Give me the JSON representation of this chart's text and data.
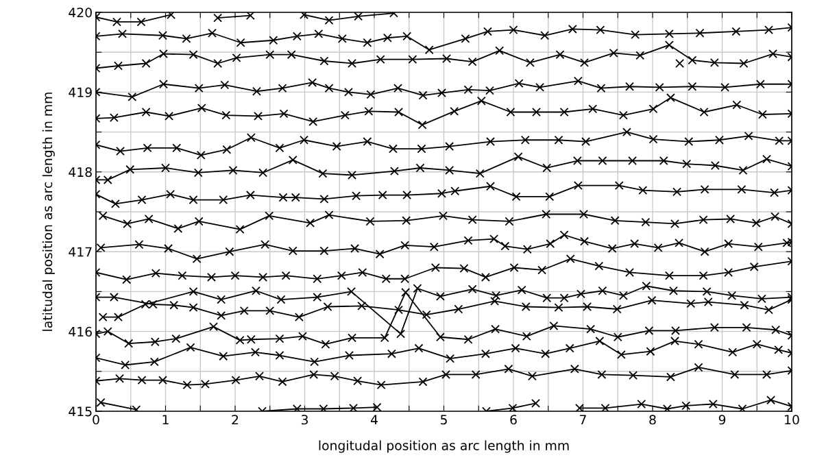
{
  "chart_data": {
    "type": "line",
    "xlabel": "longitudal position as arc length in mm",
    "ylabel": "latitudal position as arc length in mm",
    "xlim": [
      0,
      10
    ],
    "ylim": [
      415,
      420
    ],
    "xticks": [
      0,
      {
        "value": 0.5,
        "label": null
      },
      1,
      {
        "value": 1.5,
        "label": null
      },
      2,
      {
        "value": 2.5,
        "label": null
      },
      3,
      {
        "value": 3.5,
        "label": null
      },
      4,
      {
        "value": 4.5,
        "label": null
      },
      5,
      {
        "value": 5.5,
        "label": null
      },
      6,
      {
        "value": 6.5,
        "label": null
      },
      7,
      {
        "value": 7.5,
        "label": null
      },
      8,
      {
        "value": 8.5,
        "label": null
      },
      9,
      {
        "value": 9.5,
        "label": null
      },
      10
    ],
    "yticks": [
      415,
      {
        "value": 415.5,
        "label": null
      },
      416,
      {
        "value": 416.5,
        "label": null
      },
      417,
      {
        "value": 417.5,
        "label": null
      },
      418,
      {
        "value": 418.5,
        "label": null
      },
      419,
      {
        "value": 419.5,
        "label": null
      },
      420
    ],
    "grid": true,
    "marker": "cross",
    "line_style": "solid",
    "legend": false,
    "series": [
      {
        "color": "#000000",
        "x": [
          0,
          0.3,
          0.65,
          1.08,
          1.4,
          1.75,
          2.22,
          2.6,
          2.99,
          3.35,
          3.77,
          4.28,
          6,
          8.39
        ],
        "values": [
          419.94,
          419.88,
          419.88,
          419.97,
          null,
          419.93,
          419.96,
          null,
          419.97,
          419.9,
          419.95,
          419.99,
          null,
          419.36
        ]
      },
      {
        "color": "#000000",
        "x": [
          0,
          0.38,
          0.96,
          1.3,
          1.67,
          2.08,
          2.55,
          2.89,
          3.2,
          3.54,
          3.9,
          4.19,
          4.47,
          4.79,
          5.31,
          5.63,
          6.0,
          6.45,
          6.85,
          7.25,
          7.75,
          8.24,
          8.68,
          9.2,
          9.67,
          10
        ],
        "values": [
          419.7,
          419.73,
          419.71,
          419.67,
          419.74,
          419.62,
          419.65,
          419.7,
          419.73,
          419.67,
          419.62,
          419.68,
          419.7,
          419.53,
          419.67,
          419.76,
          419.78,
          419.71,
          419.79,
          419.78,
          419.72,
          419.73,
          419.74,
          419.76,
          419.78,
          419.81
        ]
      },
      {
        "color": "#000000",
        "x": [
          0,
          0.32,
          0.72,
          0.97,
          1.4,
          1.75,
          2.02,
          2.5,
          2.81,
          3.28,
          3.68,
          4.09,
          4.55,
          5.04,
          5.41,
          5.8,
          6.24,
          6.67,
          7.02,
          7.44,
          7.82,
          8.24,
          8.57,
          8.89,
          9.31,
          9.73,
          10
        ],
        "values": [
          419.3,
          419.33,
          419.36,
          419.48,
          419.47,
          419.36,
          419.43,
          419.47,
          419.47,
          419.39,
          419.36,
          419.41,
          419.41,
          419.42,
          419.38,
          419.52,
          419.37,
          419.47,
          419.37,
          419.49,
          419.46,
          419.59,
          419.4,
          419.37,
          419.36,
          419.48,
          419.44
        ]
      },
      {
        "color": "#000000",
        "x": [
          0,
          0.52,
          0.97,
          1.48,
          1.85,
          2.31,
          2.68,
          3.11,
          3.35,
          3.63,
          3.95,
          4.34,
          4.7,
          4.97,
          5.35,
          5.66,
          6.08,
          6.38,
          6.93,
          7.26,
          7.67,
          8.1,
          8.57,
          9.04,
          9.55,
          10
        ],
        "values": [
          419.0,
          418.94,
          419.1,
          419.05,
          419.09,
          419.01,
          419.05,
          419.12,
          419.05,
          419.0,
          418.97,
          419.05,
          418.96,
          418.99,
          419.03,
          419.02,
          419.11,
          419.06,
          419.14,
          419.05,
          419.07,
          419.06,
          419.07,
          419.06,
          419.1,
          419.1
        ]
      },
      {
        "color": "#000000",
        "x": [
          0,
          0.26,
          0.72,
          1.05,
          1.52,
          1.87,
          2.33,
          2.7,
          3.12,
          3.58,
          3.92,
          4.35,
          4.69,
          5.15,
          5.54,
          5.96,
          6.33,
          6.73,
          7.14,
          7.58,
          8.01,
          8.26,
          8.74,
          9.21,
          9.58,
          10
        ],
        "values": [
          418.67,
          418.68,
          418.75,
          418.7,
          418.8,
          418.71,
          418.7,
          418.73,
          418.63,
          418.71,
          418.76,
          418.75,
          418.59,
          418.76,
          418.89,
          418.75,
          418.75,
          418.75,
          418.79,
          418.71,
          418.79,
          418.93,
          418.75,
          418.84,
          418.72,
          418.73
        ]
      },
      {
        "color": "#000000",
        "x": [
          0,
          0.35,
          0.74,
          1.16,
          1.51,
          1.88,
          2.23,
          2.64,
          2.99,
          3.46,
          3.9,
          4.27,
          4.68,
          5.08,
          5.67,
          6.17,
          6.65,
          7.04,
          7.63,
          8.01,
          8.52,
          8.96,
          9.38,
          9.82,
          10
        ],
        "values": [
          418.34,
          418.26,
          418.3,
          418.3,
          418.21,
          418.28,
          418.43,
          418.3,
          418.4,
          418.32,
          418.38,
          418.29,
          418.29,
          418.32,
          418.38,
          418.4,
          418.4,
          418.38,
          418.5,
          418.41,
          418.38,
          418.4,
          418.45,
          418.39,
          418.39
        ]
      },
      {
        "color": "#000000",
        "x": [
          0,
          0.17,
          0.49,
          1.0,
          1.47,
          1.97,
          2.4,
          2.83,
          3.26,
          3.68,
          4.29,
          4.66,
          5.08,
          5.52,
          6.07,
          6.48,
          6.92,
          7.28,
          7.71,
          8.16,
          8.49,
          8.9,
          9.3,
          9.64,
          10
        ],
        "values": [
          417.9,
          417.9,
          418.03,
          418.05,
          417.99,
          418.02,
          417.99,
          418.15,
          417.98,
          417.96,
          418.01,
          418.05,
          418.02,
          417.98,
          418.19,
          418.05,
          418.14,
          418.14,
          418.14,
          418.14,
          418.1,
          418.08,
          418.02,
          418.16,
          418.07
        ]
      },
      {
        "color": "#000000",
        "x": [
          0,
          0.28,
          0.66,
          1.07,
          1.4,
          1.83,
          2.22,
          2.69,
          2.87,
          3.28,
          3.74,
          4.12,
          4.47,
          4.97,
          5.16,
          5.67,
          6.04,
          6.52,
          6.93,
          7.52,
          7.86,
          8.35,
          8.75,
          9.28,
          9.75,
          10
        ],
        "values": [
          417.72,
          417.6,
          417.65,
          417.72,
          417.65,
          417.65,
          417.71,
          417.68,
          417.68,
          417.66,
          417.7,
          417.71,
          417.71,
          417.73,
          417.76,
          417.82,
          417.69,
          417.69,
          417.83,
          417.83,
          417.77,
          417.75,
          417.78,
          417.78,
          417.74,
          417.77
        ]
      },
      {
        "color": "#000000",
        "x": [
          0.1,
          0.45,
          0.76,
          1.18,
          1.48,
          2.07,
          2.49,
          3.08,
          3.35,
          3.94,
          4.46,
          4.99,
          5.41,
          5.94,
          6.47,
          7.01,
          7.46,
          7.9,
          8.32,
          8.73,
          9.12,
          9.49,
          9.76,
          10
        ],
        "values": [
          417.45,
          417.35,
          417.41,
          417.29,
          417.38,
          417.28,
          417.45,
          417.36,
          417.46,
          417.38,
          417.39,
          417.45,
          417.4,
          417.38,
          417.47,
          417.47,
          417.39,
          417.37,
          417.35,
          417.4,
          417.41,
          417.36,
          417.44,
          417.35
        ]
      },
      {
        "color": "#000000",
        "x": [
          0.07,
          0.62,
          1.04,
          1.45,
          1.92,
          2.43,
          2.83,
          3.28,
          3.72,
          4.08,
          4.44,
          4.86,
          5.35,
          5.72,
          5.88,
          6.2,
          6.53,
          6.73,
          7.02,
          7.42,
          7.74,
          8.08,
          8.38,
          8.75,
          9.09,
          9.52,
          9.93,
          10
        ],
        "values": [
          417.05,
          417.09,
          417.04,
          416.91,
          417.0,
          417.09,
          417.01,
          417.01,
          417.04,
          416.97,
          417.08,
          417.06,
          417.14,
          417.16,
          417.07,
          417.03,
          417.1,
          417.21,
          417.13,
          417.04,
          417.1,
          417.05,
          417.11,
          417.0,
          417.1,
          417.06,
          417.11,
          417.12
        ]
      },
      {
        "color": "#000000",
        "x": [
          0,
          0.44,
          0.86,
          1.24,
          1.66,
          2.0,
          2.4,
          2.73,
          3.18,
          3.53,
          3.83,
          4.17,
          4.44,
          4.88,
          5.29,
          5.6,
          6.01,
          6.41,
          6.82,
          7.23,
          7.67,
          8.24,
          8.73,
          9.09,
          9.46,
          10
        ],
        "values": [
          416.74,
          416.65,
          416.73,
          416.7,
          416.68,
          416.7,
          416.68,
          416.7,
          416.66,
          416.7,
          416.74,
          416.66,
          416.66,
          416.8,
          416.79,
          416.68,
          416.8,
          416.77,
          416.91,
          416.82,
          416.74,
          416.7,
          416.7,
          416.74,
          416.81,
          416.88
        ]
      },
      {
        "color": "#000000",
        "x": [
          0,
          0.26,
          0.82,
          1.12,
          1.4,
          1.8,
          2.13,
          2.5,
          2.92,
          3.33,
          3.82,
          4.35,
          4.75,
          5.21,
          5.73,
          6.18,
          6.65,
          7.06,
          7.49,
          7.99,
          8.55,
          8.8,
          9.32,
          9.67,
          10
        ],
        "values": [
          416.43,
          416.43,
          416.34,
          416.33,
          416.3,
          416.2,
          416.26,
          416.26,
          416.18,
          416.31,
          416.32,
          416.27,
          416.21,
          416.28,
          416.38,
          416.31,
          416.3,
          416.31,
          416.28,
          416.39,
          416.35,
          416.37,
          416.33,
          416.27,
          416.4
        ]
      },
      {
        "color": "#000000",
        "x": [
          0.1,
          0.32,
          0.71,
          1.4,
          1.8,
          2.3,
          2.66,
          3.18,
          3.67,
          4.38,
          4.62,
          4.95,
          5.41,
          5.75,
          6.12,
          6.48,
          6.73,
          6.97,
          7.28,
          7.58,
          7.91,
          8.3,
          8.78,
          9.14,
          9.57,
          10
        ],
        "values": [
          416.18,
          416.18,
          416.34,
          416.5,
          416.4,
          416.51,
          416.4,
          416.43,
          416.5,
          415.97,
          416.54,
          416.44,
          416.53,
          416.45,
          416.52,
          416.42,
          416.42,
          416.47,
          416.51,
          416.45,
          416.57,
          416.51,
          416.5,
          416.45,
          416.41,
          416.43
        ]
      },
      {
        "color": "#000000",
        "x": [
          0,
          0.17,
          0.47,
          0.85,
          1.15,
          1.69,
          2.07,
          2.23,
          2.64,
          2.97,
          3.3,
          3.68,
          4.15,
          4.45,
          4.95,
          5.35,
          5.74,
          6.19,
          6.58,
          7.11,
          7.5,
          7.95,
          8.33,
          8.89,
          9.35,
          9.77,
          10
        ],
        "values": [
          415.97,
          416.0,
          415.85,
          415.87,
          415.91,
          416.06,
          415.89,
          415.9,
          415.91,
          415.94,
          415.84,
          415.92,
          415.92,
          416.49,
          415.93,
          415.9,
          416.03,
          415.94,
          416.07,
          416.03,
          415.93,
          416.01,
          416.01,
          416.05,
          416.05,
          416.02,
          415.95
        ]
      },
      {
        "color": "#000000",
        "x": [
          0,
          0.42,
          0.84,
          1.36,
          1.83,
          2.29,
          2.64,
          3.14,
          3.64,
          4.25,
          4.64,
          5.09,
          5.6,
          6.03,
          6.46,
          6.81,
          7.24,
          7.55,
          7.97,
          8.32,
          8.66,
          9.15,
          9.5,
          9.81,
          10
        ],
        "values": [
          415.67,
          415.58,
          415.62,
          415.8,
          415.69,
          415.74,
          415.7,
          415.62,
          415.7,
          415.72,
          415.79,
          415.66,
          415.72,
          415.79,
          415.72,
          415.79,
          415.88,
          415.71,
          415.75,
          415.88,
          415.84,
          415.74,
          415.84,
          415.77,
          415.73
        ]
      },
      {
        "color": "#000000",
        "x": [
          0,
          0.34,
          0.66,
          0.96,
          1.31,
          1.57,
          2.01,
          2.35,
          2.68,
          3.13,
          3.43,
          3.76,
          4.1,
          4.7,
          5.03,
          5.46,
          5.93,
          6.27,
          6.88,
          7.27,
          7.72,
          8.26,
          8.66,
          9.18,
          9.64,
          10
        ],
        "values": [
          415.38,
          415.41,
          415.39,
          415.39,
          415.33,
          415.34,
          415.39,
          415.44,
          415.37,
          415.46,
          415.44,
          415.38,
          415.33,
          415.37,
          415.46,
          415.46,
          415.53,
          415.44,
          415.53,
          415.46,
          415.45,
          415.43,
          415.55,
          415.46,
          415.46,
          415.51
        ]
      },
      {
        "color": "#000000",
        "x": [
          0.07,
          0.58,
          1.5,
          2.39,
          2.89,
          3.27,
          3.7,
          4.04,
          4.8,
          5.61,
          5.99,
          6.32,
          6.6,
          6.95,
          7.32,
          7.84,
          8.21,
          8.48,
          8.87,
          9.29,
          9.7,
          10
        ],
        "values": [
          415.11,
          415.02,
          null,
          415.0,
          415.03,
          415.03,
          415.04,
          415.05,
          null,
          415.0,
          415.04,
          415.1,
          null,
          415.04,
          415.04,
          415.09,
          415.03,
          415.07,
          415.09,
          415.03,
          415.14,
          415.06
        ]
      }
    ]
  }
}
